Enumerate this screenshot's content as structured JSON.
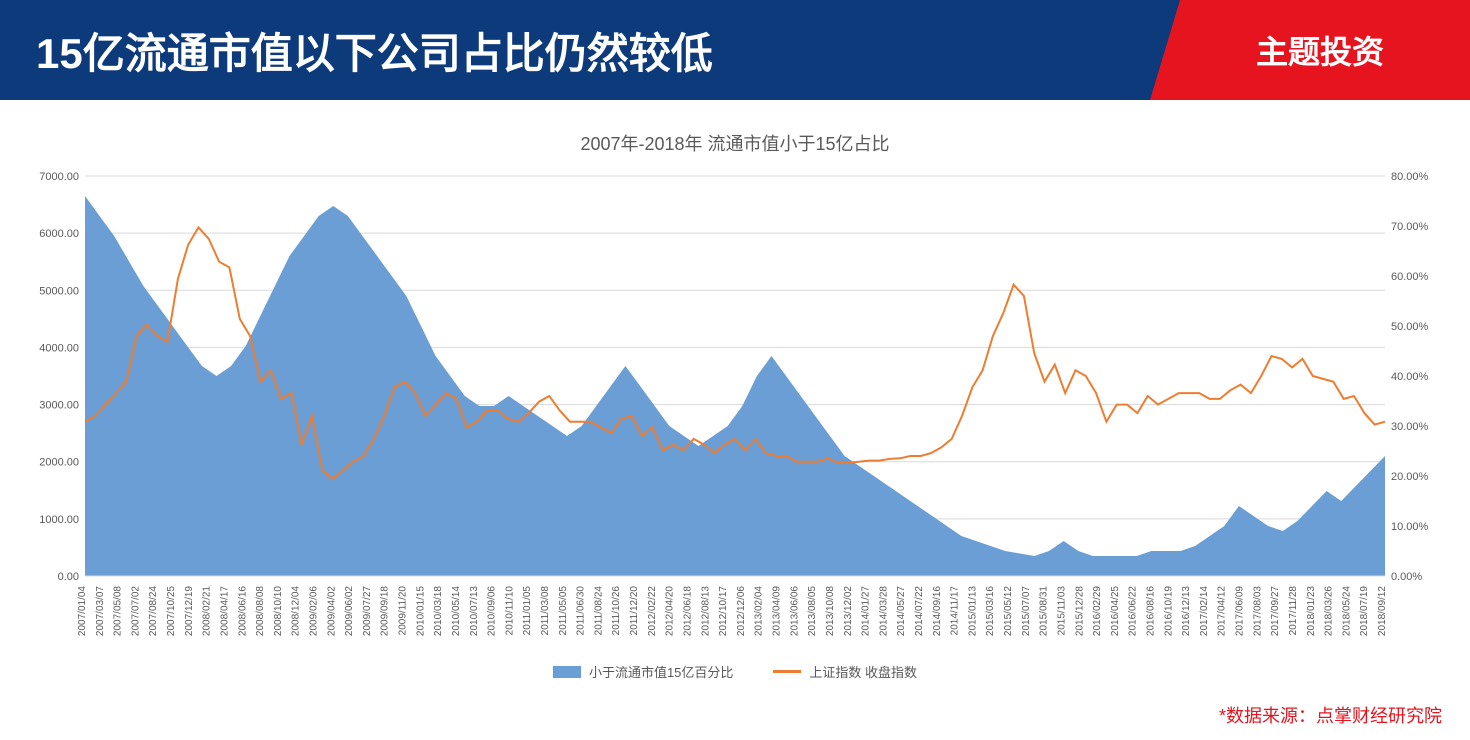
{
  "header": {
    "title": "15亿流通市值以下公司占比仍然较低",
    "badge": "主题投资"
  },
  "chart": {
    "title": "2007年-2018年 流通市值小于15亿占比",
    "type": "combo-area-line",
    "background_color": "#ffffff",
    "grid_color": "#d9d9d9",
    "area_color": "#6a9ed4",
    "line_color": "#ed7d31",
    "y_left": {
      "min": 0,
      "max": 7000,
      "step": 1000,
      "labels": [
        "0.00",
        "1000.00",
        "2000.00",
        "3000.00",
        "4000.00",
        "5000.00",
        "6000.00",
        "7000.00"
      ],
      "fontsize": 11
    },
    "y_right": {
      "min": 0,
      "max": 0.8,
      "step": 0.1,
      "labels": [
        "0.00%",
        "10.00%",
        "20.00%",
        "30.00%",
        "40.00%",
        "50.00%",
        "60.00%",
        "70.00%",
        "80.00%"
      ],
      "fontsize": 11
    },
    "x_labels": [
      "2007/01/04",
      "2007/03/07",
      "2007/05/08",
      "2007/07/02",
      "2007/08/24",
      "2007/10/25",
      "2007/12/19",
      "2008/02/21",
      "2008/04/17",
      "2008/06/16",
      "2008/08/08",
      "2008/10/10",
      "2008/12/04",
      "2009/02/06",
      "2009/04/02",
      "2009/06/02",
      "2009/07/27",
      "2009/09/18",
      "2009/11/20",
      "2010/01/15",
      "2010/03/18",
      "2010/05/14",
      "2010/07/13",
      "2010/09/06",
      "2010/11/10",
      "2011/01/05",
      "2011/03/08",
      "2011/05/05",
      "2011/06/30",
      "2011/08/24",
      "2011/10/26",
      "2011/12/20",
      "2012/02/22",
      "2012/04/20",
      "2012/06/18",
      "2012/08/13",
      "2012/10/17",
      "2012/12/06",
      "2013/02/04",
      "2013/04/09",
      "2013/06/06",
      "2013/08/05",
      "2013/10/08",
      "2013/12/02",
      "2014/01/27",
      "2014/03/28",
      "2014/05/27",
      "2014/07/22",
      "2014/09/16",
      "2014/11/17",
      "2015/01/13",
      "2015/03/16",
      "2015/05/12",
      "2015/07/07",
      "2015/08/31",
      "2015/11/03",
      "2015/12/28",
      "2016/02/29",
      "2016/04/25",
      "2016/06/22",
      "2016/08/16",
      "2016/10/19",
      "2016/12/13",
      "2017/02/14",
      "2017/04/12",
      "2017/06/09",
      "2017/08/03",
      "2017/09/27",
      "2017/11/28",
      "2018/01/23",
      "2018/03/26",
      "2018/05/24",
      "2018/07/19",
      "2018/09/12"
    ],
    "x_fontsize": 10,
    "legend": {
      "area_label": "小于流通市值15亿百分比",
      "line_label": "上证指数 收盘指数",
      "fontsize": 13
    },
    "area_series_pct": [
      0.76,
      0.72,
      0.68,
      0.63,
      0.58,
      0.54,
      0.5,
      0.46,
      0.42,
      0.4,
      0.42,
      0.46,
      0.52,
      0.58,
      0.64,
      0.68,
      0.72,
      0.74,
      0.72,
      0.68,
      0.64,
      0.6,
      0.56,
      0.5,
      0.44,
      0.4,
      0.36,
      0.34,
      0.34,
      0.36,
      0.34,
      0.32,
      0.3,
      0.28,
      0.3,
      0.34,
      0.38,
      0.42,
      0.38,
      0.34,
      0.3,
      0.28,
      0.26,
      0.28,
      0.3,
      0.34,
      0.4,
      0.44,
      0.4,
      0.36,
      0.32,
      0.28,
      0.24,
      0.22,
      0.2,
      0.18,
      0.16,
      0.14,
      0.12,
      0.1,
      0.08,
      0.07,
      0.06,
      0.05,
      0.045,
      0.04,
      0.05,
      0.07,
      0.05,
      0.04,
      0.04,
      0.04,
      0.04,
      0.05,
      0.05,
      0.05,
      0.06,
      0.08,
      0.1,
      0.14,
      0.12,
      0.1,
      0.09,
      0.11,
      0.14,
      0.17,
      0.15,
      0.18,
      0.21,
      0.24
    ],
    "line_series_idx": [
      2700,
      2800,
      3000,
      3200,
      3400,
      4200,
      4400,
      4200,
      4100,
      5200,
      5800,
      6100,
      5900,
      5500,
      5400,
      4500,
      4200,
      3400,
      3600,
      3100,
      3200,
      2300,
      2800,
      1850,
      1700,
      1850,
      2000,
      2100,
      2400,
      2800,
      3300,
      3400,
      3200,
      2800,
      3000,
      3200,
      3100,
      2600,
      2700,
      2900,
      2900,
      2750,
      2700,
      2850,
      3050,
      3150,
      2900,
      2700,
      2700,
      2700,
      2600,
      2500,
      2750,
      2800,
      2450,
      2600,
      2200,
      2300,
      2200,
      2400,
      2300,
      2150,
      2300,
      2400,
      2200,
      2400,
      2150,
      2100,
      2100,
      2000,
      2000,
      2000,
      2060,
      1980,
      1980,
      2000,
      2020,
      2020,
      2050,
      2060,
      2100,
      2100,
      2150,
      2250,
      2400,
      2800,
      3300,
      3600,
      4200,
      4600,
      5100,
      4900,
      3900,
      3400,
      3700,
      3200,
      3600,
      3500,
      3200,
      2700,
      3000,
      3000,
      2850,
      3150,
      3000,
      3100,
      3200,
      3200,
      3200,
      3100,
      3100,
      3250,
      3350,
      3200,
      3500,
      3850,
      3800,
      3650,
      3800,
      3500,
      3450,
      3400,
      3100,
      3150,
      2850,
      2650,
      2700
    ]
  },
  "source_note": "*数据来源：点掌财经研究院",
  "colors": {
    "header_bg": "#0c3a7a",
    "badge_bg": "#e5141f",
    "text_white": "#ffffff",
    "axis_text": "#595959",
    "source_text": "#e5141f"
  }
}
